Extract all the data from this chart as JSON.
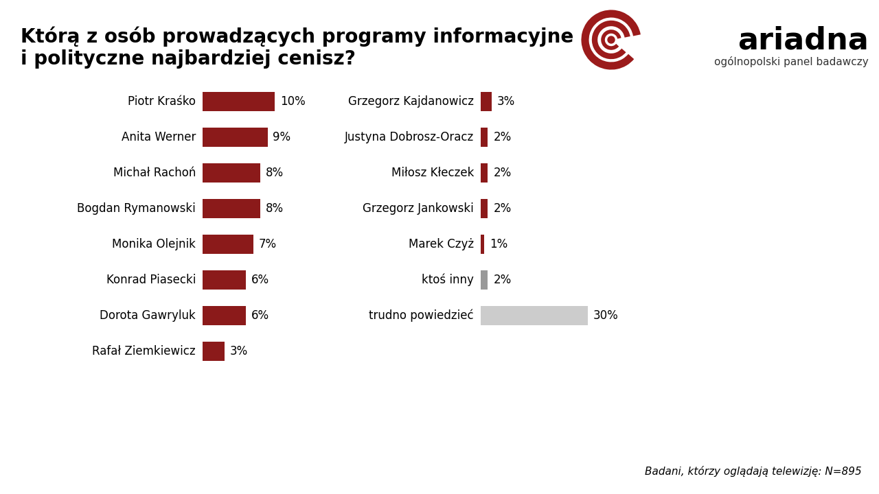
{
  "title_line1": "Którą z osób prowadzących programy informacyjne",
  "title_line2": "i polityczne najbardziej cenisz?",
  "left_labels": [
    "Piotr Kraśko",
    "Anita Werner",
    "Michał Rachoń",
    "Bogdan Rymanowski",
    "Monika Olejnik",
    "Konrad Piasecki",
    "Dorota Gawryluk",
    "Rafał Ziemkiewicz"
  ],
  "left_values": [
    10,
    9,
    8,
    8,
    7,
    6,
    6,
    3
  ],
  "right_labels": [
    "Grzegorz Kajdanowicz",
    "Justyna Dobrosz-Oracz",
    "Miłosz Kłeczek",
    "Grzegorz Jankowski",
    "Marek Czyż",
    "ktoś inny",
    "trudno powiedzieć"
  ],
  "right_values": [
    3,
    2,
    2,
    2,
    1,
    2,
    30
  ],
  "bar_color_dark": "#8B1A1A",
  "bar_color_gray_light": "#CCCCCC",
  "bar_color_gray_mid": "#999999",
  "logo_color": "#9B1B1B",
  "footnote": "Badani, którzy oglądają telewizję: N=895",
  "background_color": "#FFFFFF",
  "title_fontsize": 20,
  "label_fontsize": 12,
  "value_fontsize": 12
}
